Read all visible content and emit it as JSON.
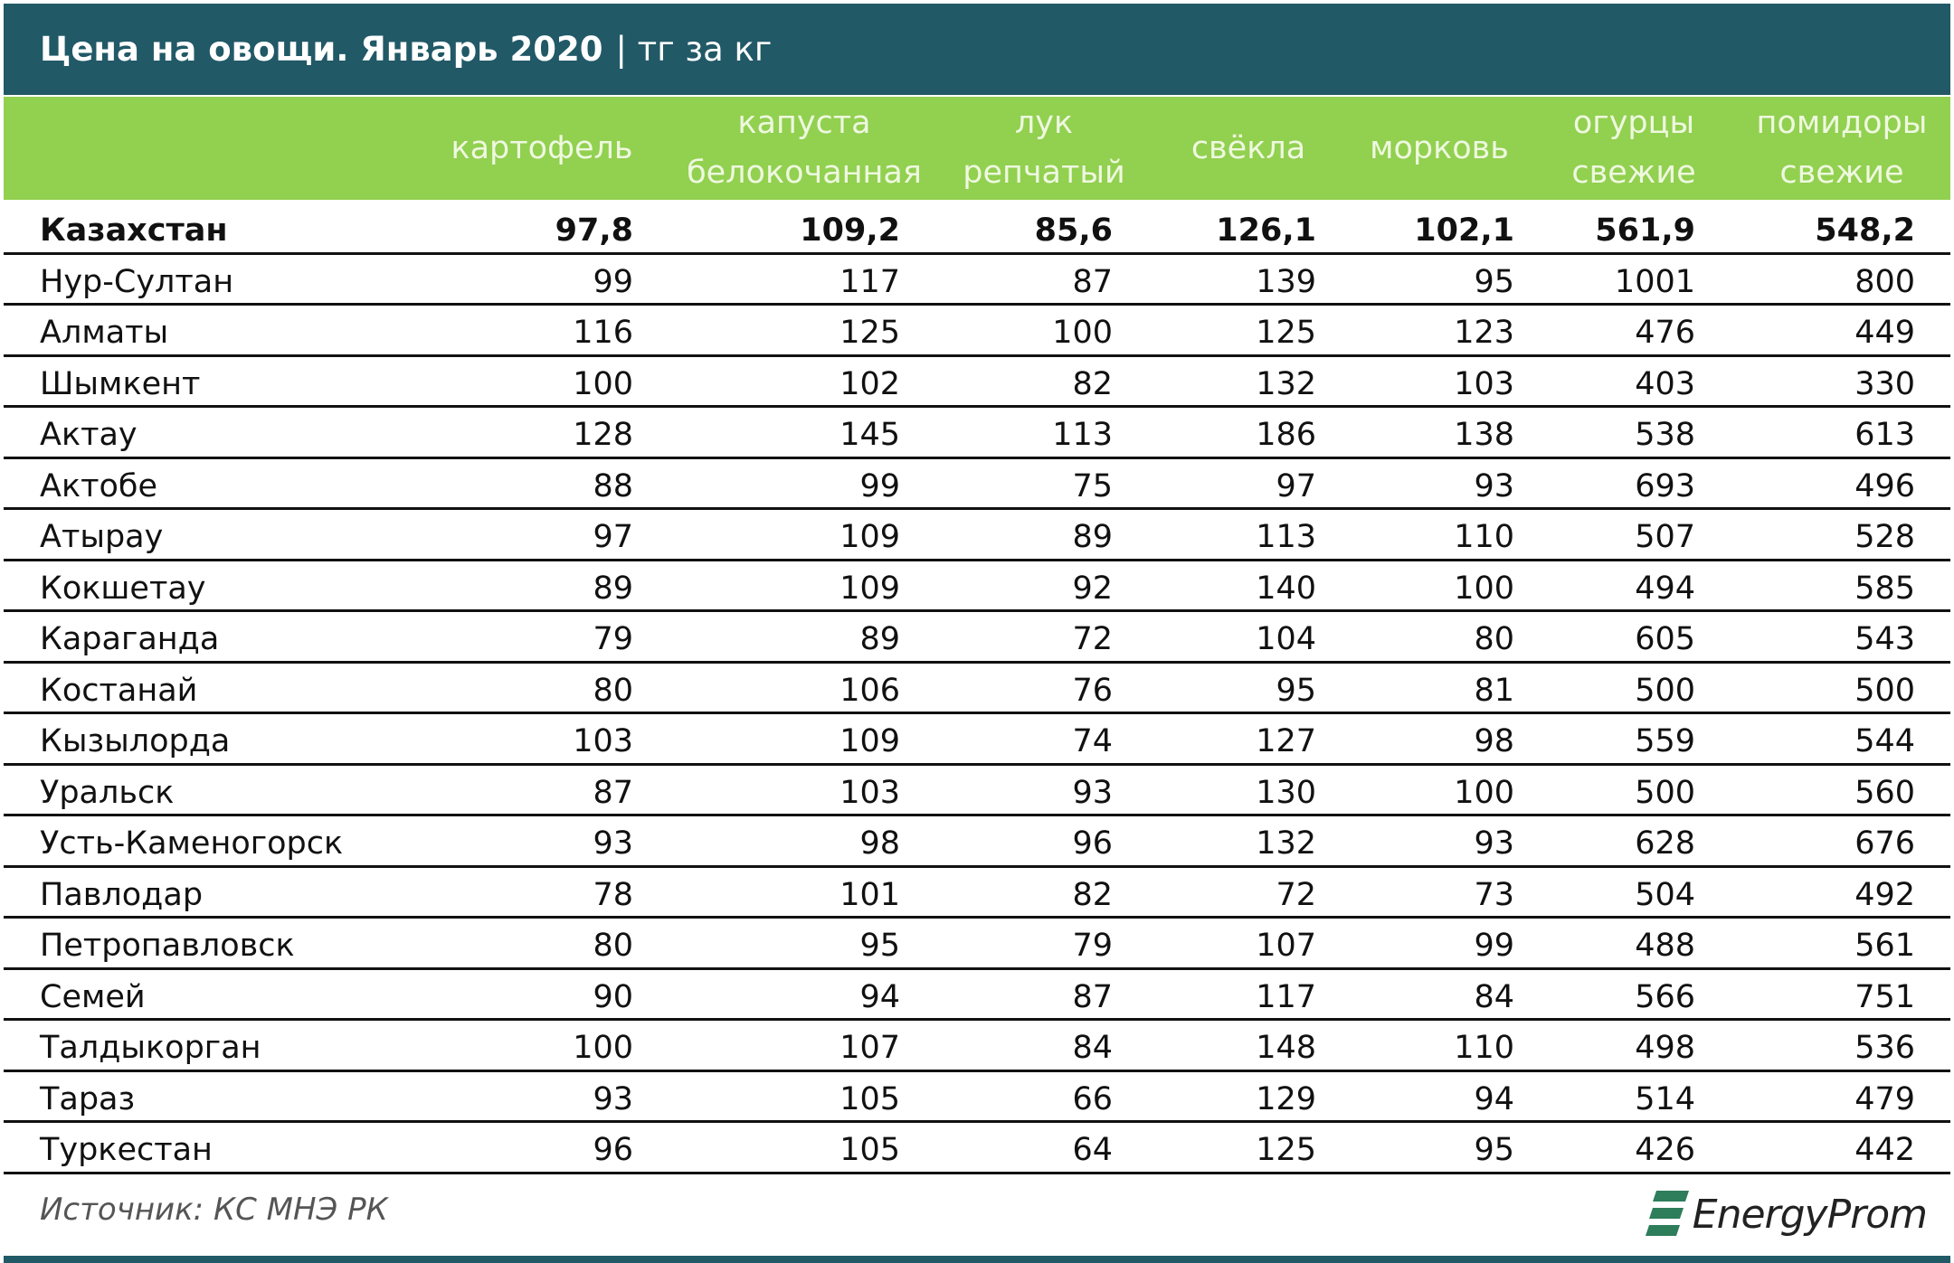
{
  "header": {
    "title": "Цена на овощи. Январь 2020",
    "unit": "| тг за кг"
  },
  "table": {
    "columns": [
      "картофель",
      "капуста\nбелокочанная",
      "лук\nрепчатый",
      "свёкла",
      "морковь",
      "огурцы\nсвежие",
      "помидоры\nсвежие"
    ],
    "rows": [
      [
        "Казахстан",
        "97,8",
        "109,2",
        "85,6",
        "126,1",
        "102,1",
        "561,9",
        "548,2"
      ],
      [
        "Нур-Султан",
        "99",
        "117",
        "87",
        "139",
        "95",
        "1001",
        "800"
      ],
      [
        "Алматы",
        "116",
        "125",
        "100",
        "125",
        "123",
        "476",
        "449"
      ],
      [
        "Шымкент",
        "100",
        "102",
        "82",
        "132",
        "103",
        "403",
        "330"
      ],
      [
        "Актау",
        "128",
        "145",
        "113",
        "186",
        "138",
        "538",
        "613"
      ],
      [
        "Актобе",
        "88",
        "99",
        "75",
        "97",
        "93",
        "693",
        "496"
      ],
      [
        "Атырау",
        "97",
        "109",
        "89",
        "113",
        "110",
        "507",
        "528"
      ],
      [
        "Кокшетау",
        "89",
        "109",
        "92",
        "140",
        "100",
        "494",
        "585"
      ],
      [
        "Караганда",
        "79",
        "89",
        "72",
        "104",
        "80",
        "605",
        "543"
      ],
      [
        "Костанай",
        "80",
        "106",
        "76",
        "95",
        "81",
        "500",
        "500"
      ],
      [
        "Кызылорда",
        "103",
        "109",
        "74",
        "127",
        "98",
        "559",
        "544"
      ],
      [
        "Уральск",
        "87",
        "103",
        "93",
        "130",
        "100",
        "500",
        "560"
      ],
      [
        "Усть-Каменогорск",
        "93",
        "98",
        "96",
        "132",
        "93",
        "628",
        "676"
      ],
      [
        "Павлодар",
        "78",
        "101",
        "82",
        "72",
        "73",
        "504",
        "492"
      ],
      [
        "Петропавловск",
        "80",
        "95",
        "79",
        "107",
        "99",
        "488",
        "561"
      ],
      [
        "Семей",
        "90",
        "94",
        "87",
        "117",
        "84",
        "566",
        "751"
      ],
      [
        "Талдыкорган",
        "100",
        "107",
        "84",
        "148",
        "110",
        "498",
        "536"
      ],
      [
        "Тараз",
        "93",
        "105",
        "66",
        "129",
        "94",
        "514",
        "479"
      ],
      [
        "Туркестан",
        "96",
        "105",
        "64",
        "125",
        "95",
        "426",
        "442"
      ]
    ]
  },
  "footer": {
    "source": "Источник: КС МНЭ РК",
    "logo": "EnergyProm"
  }
}
